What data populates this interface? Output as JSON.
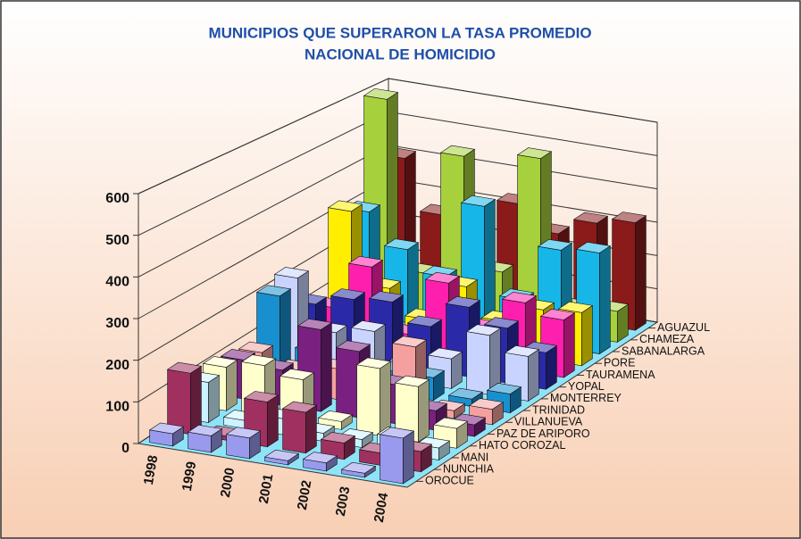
{
  "chart_data": {
    "type": "bar3d",
    "title": [
      "MUNICIPIOS QUE SUPERARON LA TASA PROMEDIO",
      "NACIONAL DE HOMICIDIO"
    ],
    "categories": [
      "1998",
      "1999",
      "2000",
      "2001",
      "2002",
      "2003",
      "2004"
    ],
    "ylim": [
      0,
      600
    ],
    "yticks": [
      0,
      100,
      200,
      300,
      400,
      500,
      600
    ],
    "grid": true,
    "series": [
      {
        "name": "AGUAZUL",
        "color": "#8b1a1a",
        "values": [
          400,
          250,
          280,
          320,
          250,
          300,
          320
        ]
      },
      {
        "name": "CHAMEZA",
        "color": "#a6d13c",
        "values": [
          600,
          110,
          470,
          150,
          500,
          80,
          90
        ]
      },
      {
        "name": "SABANALARGA",
        "color": "#17b6e8",
        "values": [
          300,
          210,
          150,
          370,
          120,
          280,
          290
        ]
      },
      {
        "name": "PORE",
        "color": "#ffee00",
        "values": [
          330,
          130,
          60,
          170,
          90,
          140,
          150
        ]
      },
      {
        "name": "TAURAMENA",
        "color": "#ff1fae",
        "values": [
          90,
          220,
          50,
          210,
          100,
          190,
          160
        ]
      },
      {
        "name": "YOPAL",
        "color": "#2a2aa8",
        "values": [
          130,
          160,
          170,
          120,
          190,
          150,
          100
        ]
      },
      {
        "name": "MONTERREY",
        "color": "#c8d4ff",
        "values": [
          230,
          100,
          120,
          50,
          80,
          160,
          120
        ]
      },
      {
        "name": "TRINIDAD",
        "color": "#1890d0",
        "values": [
          210,
          80,
          50,
          60,
          60,
          20,
          50
        ]
      },
      {
        "name": "VILLANUEVA",
        "color": "#f5a0a0",
        "values": [
          90,
          60,
          80,
          40,
          170,
          20,
          40
        ]
      },
      {
        "name": "PAZ DE ARIPORO",
        "color": "#7a2080",
        "values": [
          100,
          90,
          210,
          170,
          100,
          50,
          30
        ]
      },
      {
        "name": "HATO COROZAL",
        "color": "#ffffcc",
        "values": [
          110,
          130,
          110,
          20,
          170,
          140,
          50
        ]
      },
      {
        "name": "MANI",
        "color": "#ccf2ff",
        "values": [
          100,
          20,
          40,
          20,
          20,
          40,
          30
        ]
      },
      {
        "name": "NUNCHIA",
        "color": "#a03060",
        "values": [
          150,
          10,
          110,
          100,
          40,
          30,
          50
        ]
      },
      {
        "name": "OROCUE",
        "color": "#9999ee",
        "values": [
          30,
          40,
          50,
          10,
          20,
          10,
          110
        ]
      }
    ]
  }
}
